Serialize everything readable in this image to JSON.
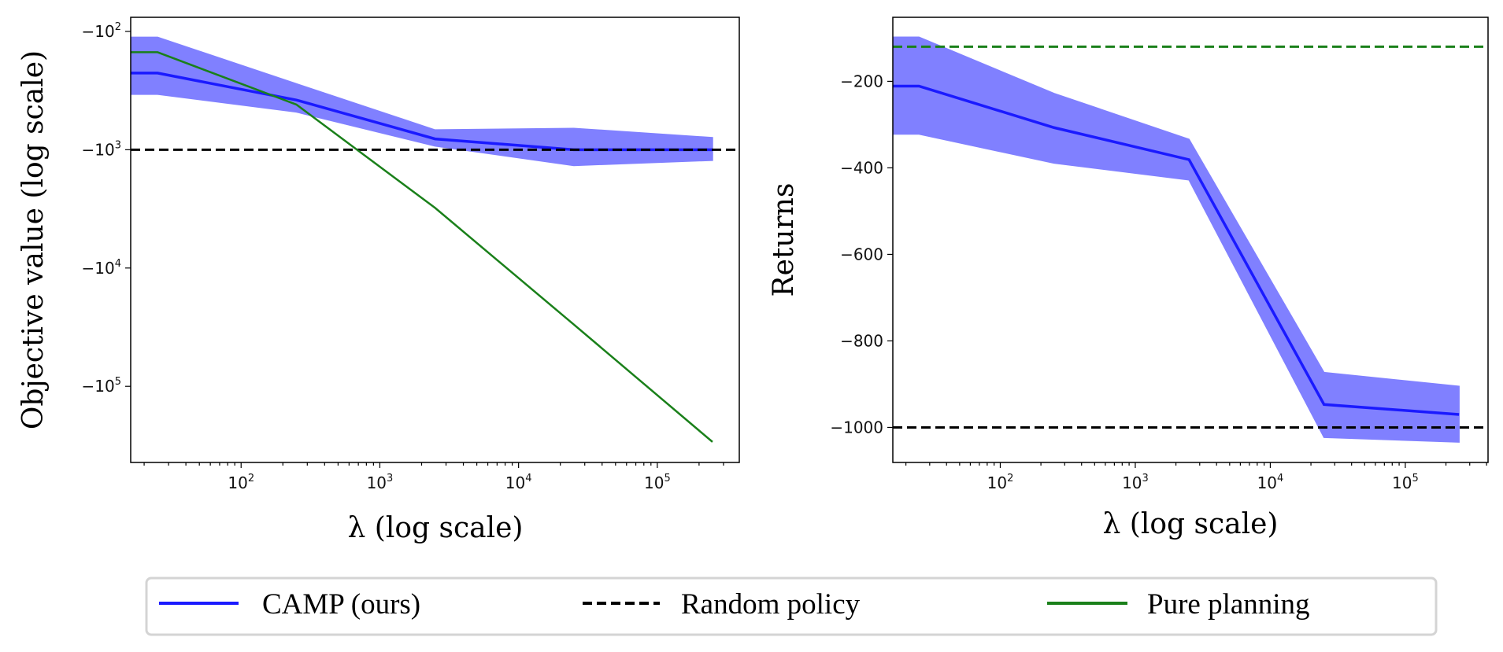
{
  "chart_data": [
    {
      "type": "line",
      "xlabel": "λ (log scale)",
      "ylabel": "Objective value (log scale)",
      "xscale": "log",
      "yscale": "log (negative values)",
      "xlim": [
        16,
        390000
      ],
      "ylim": [
        -76,
        -440000
      ],
      "xticks": [
        {
          "value": 100,
          "base": "10",
          "exp": "2"
        },
        {
          "value": 1000,
          "base": "10",
          "exp": "3"
        },
        {
          "value": 10000,
          "base": "10",
          "exp": "4"
        },
        {
          "value": 100000,
          "base": "10",
          "exp": "5"
        }
      ],
      "yticks": [
        {
          "value": -100,
          "base": "−10",
          "exp": "2"
        },
        {
          "value": -1000,
          "base": "−10",
          "exp": "3"
        },
        {
          "value": -10000,
          "base": "−10",
          "exp": "4"
        },
        {
          "value": -100000,
          "base": "−10",
          "exp": "5"
        }
      ],
      "x": [
        2.5,
        25,
        250,
        2500,
        25000,
        250000
      ],
      "series": [
        {
          "name": "CAMP (ours)",
          "color": "#1a1aff",
          "style": "solid",
          "values": [
            -225,
            -225,
            -380,
            -810,
            -1000,
            -1000
          ],
          "band_upper": [
            -112,
            -112,
            -277,
            -680,
            -660,
            -790
          ],
          "band_lower": [
            -340,
            -340,
            -480,
            -930,
            -1360,
            -1230
          ]
        },
        {
          "name": "Random policy",
          "color": "#000000",
          "style": "dashed",
          "hline": -1000
        },
        {
          "name": "Pure planning",
          "color": "#1a801a",
          "style": "solid",
          "values": [
            -150,
            -150,
            -415,
            -3100,
            -30000,
            -295000
          ]
        }
      ],
      "grid": false
    },
    {
      "type": "line",
      "xlabel": "λ (log scale)",
      "ylabel": "Returns",
      "xscale": "log",
      "yscale": "linear",
      "xlim": [
        16,
        410000
      ],
      "ylim": [
        -1081,
        -52
      ],
      "xticks": [
        {
          "value": 100,
          "base": "10",
          "exp": "2"
        },
        {
          "value": 1000,
          "base": "10",
          "exp": "3"
        },
        {
          "value": 10000,
          "base": "10",
          "exp": "4"
        },
        {
          "value": 100000,
          "base": "10",
          "exp": "5"
        }
      ],
      "yticks": [
        {
          "value": -200,
          "base": "−200",
          "exp": ""
        },
        {
          "value": -400,
          "base": "−400",
          "exp": ""
        },
        {
          "value": -600,
          "base": "−600",
          "exp": ""
        },
        {
          "value": -800,
          "base": "−800",
          "exp": ""
        },
        {
          "value": -1000,
          "base": "−1000",
          "exp": ""
        }
      ],
      "x": [
        2.5,
        25,
        250,
        2500,
        25000,
        250000
      ],
      "series": [
        {
          "name": "CAMP (ours)",
          "color": "#1a1aff",
          "style": "solid",
          "values": [
            -211,
            -211,
            -307,
            -381,
            -947,
            -970
          ],
          "band_upper": [
            -98,
            -98,
            -228,
            -334,
            -873,
            -905
          ],
          "band_lower": [
            -322,
            -322,
            -389,
            -428,
            -1023,
            -1034
          ]
        },
        {
          "name": "Random policy",
          "color": "#000000",
          "style": "dashed",
          "hline": -1000
        },
        {
          "name": "Pure planning",
          "color": "#1a801a",
          "style": "dashed",
          "hline": -120
        }
      ],
      "grid": false
    }
  ],
  "legend": {
    "position": "bottom-center",
    "items": [
      {
        "label": "CAMP (ours)",
        "color": "#1a1aff",
        "style": "solid"
      },
      {
        "label": "Random policy",
        "color": "#000000",
        "style": "dashed"
      },
      {
        "label": "Pure planning",
        "color": "#1a801a",
        "style": "solid"
      }
    ]
  },
  "band_color": "#8080ff"
}
